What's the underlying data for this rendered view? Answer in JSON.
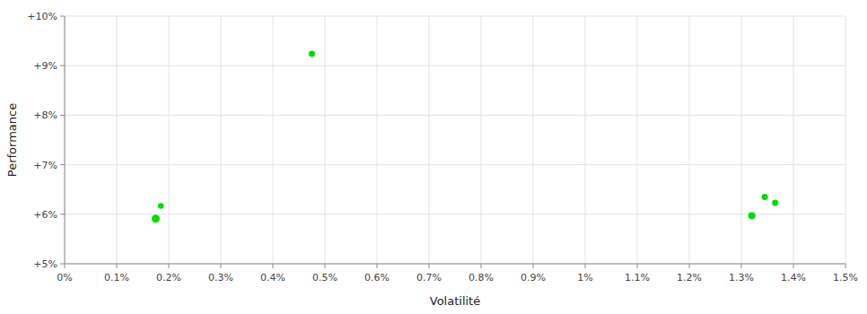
{
  "chart_data": {
    "type": "scatter",
    "xlabel": "Volatilité",
    "ylabel": "Performance",
    "color": "#00dd00",
    "grid": true,
    "xlim": [
      0.0,
      0.015
    ],
    "ylim": [
      0.05,
      0.1
    ],
    "xticks": [
      {
        "value": 0.0,
        "label": "0%"
      },
      {
        "value": 0.001,
        "label": "0.1%"
      },
      {
        "value": 0.002,
        "label": "0.2%"
      },
      {
        "value": 0.003,
        "label": "0.3%"
      },
      {
        "value": 0.004,
        "label": "0.4%"
      },
      {
        "value": 0.005,
        "label": "0.5%"
      },
      {
        "value": 0.006,
        "label": "0.6%"
      },
      {
        "value": 0.007,
        "label": "0.7%"
      },
      {
        "value": 0.008,
        "label": "0.8%"
      },
      {
        "value": 0.009,
        "label": "0.9%"
      },
      {
        "value": 0.01,
        "label": "1%"
      },
      {
        "value": 0.011,
        "label": "1.1%"
      },
      {
        "value": 0.012,
        "label": "1.2%"
      },
      {
        "value": 0.013,
        "label": "1.3%"
      },
      {
        "value": 0.014,
        "label": "1.4%"
      },
      {
        "value": 0.015,
        "label": "1.5%"
      }
    ],
    "yticks": [
      {
        "value": 0.05,
        "label": "+5%"
      },
      {
        "value": 0.06,
        "label": "+6%"
      },
      {
        "value": 0.07,
        "label": "+7%"
      },
      {
        "value": 0.08,
        "label": "+8%"
      },
      {
        "value": 0.09,
        "label": "+9%"
      },
      {
        "value": 0.1,
        "label": "+10%"
      }
    ],
    "x": [
      0.00185,
      0.00175,
      0.00475,
      0.01345,
      0.01365,
      0.0132
    ],
    "values": [
      0.0617,
      0.0591,
      0.0924,
      0.0635,
      0.0623,
      0.0597
    ],
    "sizes": [
      12,
      22,
      14,
      14,
      14,
      18
    ]
  }
}
